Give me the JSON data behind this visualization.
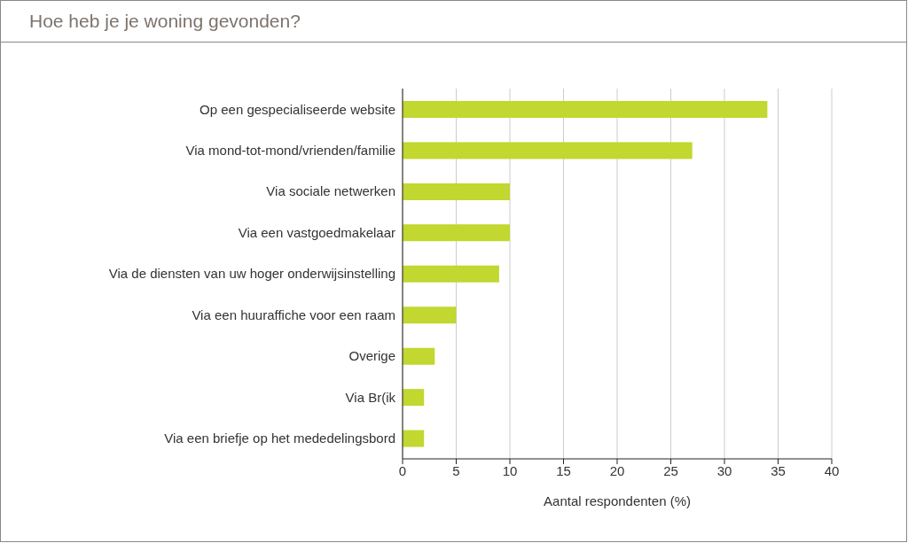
{
  "chart_data": {
    "type": "bar",
    "orientation": "horizontal",
    "title": "Hoe heb je je woning gevonden?",
    "xlabel": "Aantal respondenten (%)",
    "categories": [
      "Op een gespecialiseerde website",
      "Via mond-tot-mond/vrienden/familie",
      "Via sociale netwerken",
      "Via een vastgoedmakelaar",
      "Via de diensten van uw hoger onderwijsinstelling",
      "Via een huuraffiche voor een raam",
      "Overige",
      "Via Br(ik",
      "Via een briefje op het mededelingsbord"
    ],
    "values": [
      34,
      27,
      10,
      10,
      9,
      5,
      3,
      2,
      2
    ],
    "color": "#c2d72f",
    "xlim": [
      0,
      40
    ],
    "xticks": [
      0,
      5,
      10,
      15,
      20,
      25,
      30,
      35,
      40
    ],
    "grid": "x"
  }
}
